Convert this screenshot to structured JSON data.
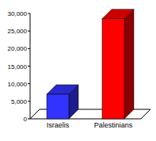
{
  "chart_data": {
    "type": "bar",
    "categories": [
      "Israelis",
      "Palestinians"
    ],
    "values": [
      7000,
      28500
    ],
    "colors": [
      "#3333ff",
      "#ff0000"
    ],
    "ylim": [
      0,
      30000
    ],
    "yticks": [
      0,
      {
        "value": 5000,
        "label": "5,000"
      },
      {
        "value": 10000,
        "label": "10,000"
      },
      {
        "value": 15000,
        "label": "15,000"
      },
      {
        "value": 20000,
        "label": "20,000"
      },
      {
        "value": 25000,
        "label": "25,000"
      },
      {
        "value": 30000,
        "label": "30,000"
      }
    ],
    "grid": false
  }
}
